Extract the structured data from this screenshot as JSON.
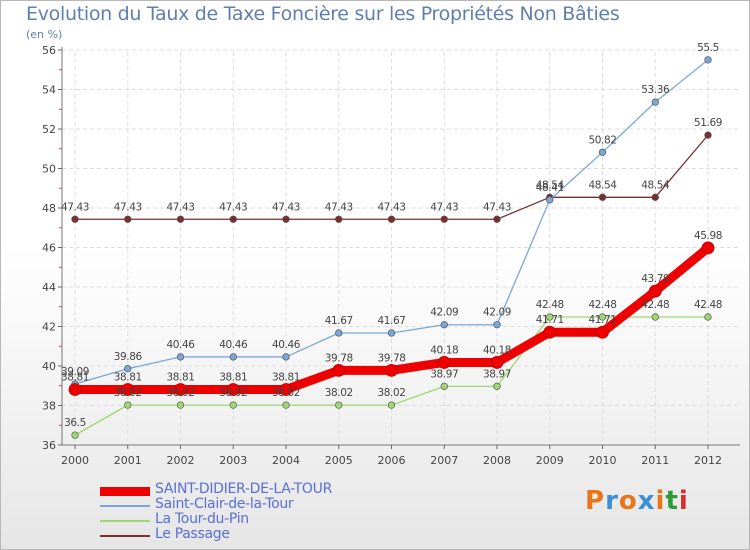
{
  "header": {
    "title": "Evolution du Taux de Taxe Foncière sur les Propriétés Non Bâties",
    "unit": "(en %)"
  },
  "logo": {
    "text": "Proxiti",
    "colors": [
      "#e8751a",
      "#3b8fd6",
      "#e8751a",
      "#3b8fd6",
      "#e8751a",
      "#2e9b3a",
      "#d62e2e"
    ]
  },
  "chart_data": {
    "type": "line",
    "title": "Evolution du Taux de Taxe Foncière sur les Propriétés Non Bâties",
    "ylabel": "(en %)",
    "xlabel": "",
    "ylim": [
      36,
      56
    ],
    "yticks": [
      36,
      38,
      40,
      42,
      44,
      46,
      48,
      50,
      52,
      54,
      56
    ],
    "categories": [
      "2000",
      "2001",
      "2002",
      "2003",
      "2004",
      "2005",
      "2006",
      "2007",
      "2008",
      "2009",
      "2010",
      "2011",
      "2012"
    ],
    "grid": true,
    "legend_position": "bottom-left",
    "series": [
      {
        "name": "SAINT-DIDIER-DE-LA-TOUR",
        "color": "#ee0000",
        "emphasis": "thick",
        "values": [
          38.81,
          38.81,
          38.81,
          38.81,
          38.81,
          39.78,
          39.78,
          40.18,
          40.18,
          41.71,
          41.71,
          43.79,
          45.98
        ],
        "labels": [
          "38.81",
          "38.81",
          "38.81",
          "38.81",
          "38.81",
          "39.78",
          "39.78",
          "40.18",
          "40.18",
          "41.71",
          "41.71",
          "43.79",
          "45.98"
        ]
      },
      {
        "name": "Saint-Clair-de-la-Tour",
        "color": "#7aa7d9",
        "emphasis": "thin",
        "values": [
          39.09,
          39.86,
          40.46,
          40.46,
          40.46,
          41.67,
          41.67,
          42.09,
          42.09,
          48.41,
          50.82,
          53.36,
          55.5
        ],
        "labels": [
          "39.09",
          "39.86",
          "40.46",
          "40.46",
          "40.46",
          "41.67",
          "41.67",
          "42.09",
          "42.09",
          "48.41",
          "50.82",
          "53.36",
          "55.5"
        ]
      },
      {
        "name": "La Tour-du-Pin",
        "color": "#9ed873",
        "emphasis": "thin",
        "values": [
          36.5,
          38.02,
          38.02,
          38.02,
          38.02,
          38.02,
          38.02,
          38.97,
          38.97,
          42.48,
          42.48,
          42.48,
          42.48
        ],
        "labels": [
          "36.5",
          "38.02",
          "38.02",
          "38.02",
          "38.02",
          "38.02",
          "38.02",
          "38.97",
          "38.97",
          "42.48",
          "42.48",
          "42.48",
          "42.48"
        ]
      },
      {
        "name": "Le Passage",
        "color": "#7a2e2e",
        "emphasis": "thin",
        "values": [
          47.43,
          47.43,
          47.43,
          47.43,
          47.43,
          47.43,
          47.43,
          47.43,
          47.43,
          48.54,
          48.54,
          48.54,
          51.69
        ],
        "labels": [
          "47.43",
          "47.43",
          "47.43",
          "47.43",
          "47.43",
          "47.43",
          "47.43",
          "47.43",
          "47.43",
          "48.54",
          "48.54",
          "48.54",
          "51.69"
        ]
      }
    ]
  }
}
